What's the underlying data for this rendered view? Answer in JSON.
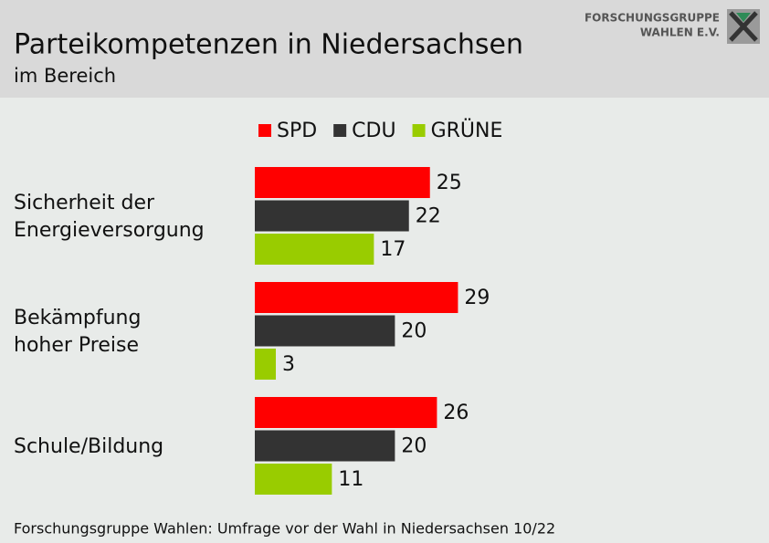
{
  "chart_data": {
    "type": "bar",
    "orientation": "horizontal",
    "title": "Parteikompetenzen in Niedersachsen",
    "subtitle": "im Bereich",
    "logo": [
      "FORSCHUNGSGRUPPE",
      "WAHLEN E.V."
    ],
    "source": "Forschungsgruppe Wahlen: Umfrage vor der Wahl in Niedersachsen 10/22",
    "categories": [
      [
        "Sicherheit der",
        "Energieversorgung"
      ],
      [
        "Bekämpfung",
        "hoher Preise"
      ],
      [
        "Schule/Bildung"
      ]
    ],
    "series": [
      {
        "name": "SPD",
        "color": "#ff0000",
        "values": [
          25,
          29,
          26
        ]
      },
      {
        "name": "CDU",
        "color": "#333333",
        "values": [
          22,
          20,
          20
        ]
      },
      {
        "name": "GRÜNE",
        "color": "#99cc00",
        "values": [
          17,
          3,
          11
        ]
      }
    ]
  }
}
